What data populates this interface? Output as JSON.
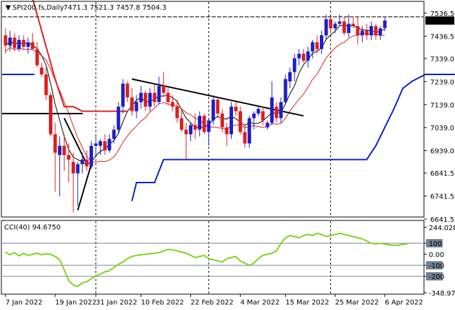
{
  "header": {
    "symbol": "SPI200.fs,Daily",
    "ohlc": "7471.3 7521.3 7457.8 7504.3"
  },
  "colors": {
    "bull": "#1e1ec8",
    "bear": "#dc1e1e",
    "price_ma": "#000000",
    "fast_ma": "#dc1e1e",
    "stop": "#0a1ec8",
    "cci": "#7fd21e",
    "grid": "#708090"
  },
  "chart_data": [
    {
      "type": "candlestick",
      "title": "SPI200.fs,Daily",
      "ylim": [
        6641.5,
        7536.5
      ],
      "y_ticks": [
        "7536.5",
        "7436.5",
        "7339.0",
        "7239.0",
        "7139.0",
        "7039.0",
        "6939.0",
        "6841.5",
        "6741.5",
        "6641.5"
      ],
      "x_ticks": [
        "7 Jan 2022",
        "19 Jan 2022",
        "31 Jan 2022",
        "10 Feb 2022",
        "22 Feb 2022",
        "4 Mar 2022",
        "15 Mar 2022",
        "25 Mar 2022",
        "6 Apr 2022"
      ],
      "last_price": "7504.3",
      "last_price_value": 7504.3,
      "resistance_level": 7520,
      "candles": [
        {
          "o": 7440,
          "h": 7470,
          "l": 7360,
          "c": 7395
        },
        {
          "o": 7395,
          "h": 7460,
          "l": 7370,
          "c": 7430
        },
        {
          "o": 7430,
          "h": 7450,
          "l": 7370,
          "c": 7385
        },
        {
          "o": 7380,
          "h": 7440,
          "l": 7370,
          "c": 7420
        },
        {
          "o": 7420,
          "h": 7440,
          "l": 7380,
          "c": 7390
        },
        {
          "o": 7390,
          "h": 7430,
          "l": 7360,
          "c": 7410
        },
        {
          "o": 7410,
          "h": 7450,
          "l": 7380,
          "c": 7380
        },
        {
          "o": 7380,
          "h": 7410,
          "l": 7300,
          "c": 7310
        },
        {
          "o": 7300,
          "h": 7320,
          "l": 7260,
          "c": 7270
        },
        {
          "o": 7270,
          "h": 7300,
          "l": 7160,
          "c": 7180
        },
        {
          "o": 7180,
          "h": 7190,
          "l": 7000,
          "c": 7010
        },
        {
          "o": 7010,
          "h": 7060,
          "l": 6760,
          "c": 6930
        },
        {
          "o": 6920,
          "h": 7000,
          "l": 6740,
          "c": 6960
        },
        {
          "o": 6960,
          "h": 7010,
          "l": 6850,
          "c": 6920
        },
        {
          "o": 6920,
          "h": 6970,
          "l": 6800,
          "c": 6900
        },
        {
          "o": 6890,
          "h": 6930,
          "l": 6670,
          "c": 6840
        },
        {
          "o": 6840,
          "h": 6890,
          "l": 6700,
          "c": 6880
        },
        {
          "o": 6880,
          "h": 6930,
          "l": 6840,
          "c": 6900
        },
        {
          "o": 6900,
          "h": 6940,
          "l": 6850,
          "c": 6870
        },
        {
          "o": 6870,
          "h": 6980,
          "l": 6860,
          "c": 6960
        },
        {
          "o": 6960,
          "h": 7000,
          "l": 6920,
          "c": 6970
        },
        {
          "o": 6960,
          "h": 6990,
          "l": 6920,
          "c": 6980
        },
        {
          "o": 6980,
          "h": 7010,
          "l": 6920,
          "c": 6940
        },
        {
          "o": 6940,
          "h": 7010,
          "l": 6930,
          "c": 6990
        },
        {
          "o": 6990,
          "h": 7050,
          "l": 6970,
          "c": 7030
        },
        {
          "o": 7030,
          "h": 7150,
          "l": 7010,
          "c": 7130
        },
        {
          "o": 7130,
          "h": 7250,
          "l": 7100,
          "c": 7230
        },
        {
          "o": 7230,
          "h": 7240,
          "l": 7150,
          "c": 7170
        },
        {
          "o": 7170,
          "h": 7210,
          "l": 7090,
          "c": 7110
        },
        {
          "o": 7110,
          "h": 7180,
          "l": 7080,
          "c": 7150
        },
        {
          "o": 7150,
          "h": 7220,
          "l": 7120,
          "c": 7190
        },
        {
          "o": 7190,
          "h": 7200,
          "l": 7110,
          "c": 7130
        },
        {
          "o": 7130,
          "h": 7210,
          "l": 7110,
          "c": 7190
        },
        {
          "o": 7190,
          "h": 7230,
          "l": 7130,
          "c": 7150
        },
        {
          "o": 7150,
          "h": 7260,
          "l": 7140,
          "c": 7220
        },
        {
          "o": 7220,
          "h": 7280,
          "l": 7180,
          "c": 7190
        },
        {
          "o": 7190,
          "h": 7210,
          "l": 7140,
          "c": 7150
        },
        {
          "o": 7150,
          "h": 7180,
          "l": 7110,
          "c": 7130
        },
        {
          "o": 7130,
          "h": 7160,
          "l": 7060,
          "c": 7080
        },
        {
          "o": 7080,
          "h": 7110,
          "l": 7020,
          "c": 7030
        },
        {
          "o": 7030,
          "h": 7060,
          "l": 6900,
          "c": 7010
        },
        {
          "o": 7010,
          "h": 7060,
          "l": 6980,
          "c": 7050
        },
        {
          "o": 7050,
          "h": 7100,
          "l": 6990,
          "c": 7030
        },
        {
          "o": 7030,
          "h": 7110,
          "l": 7000,
          "c": 7090
        },
        {
          "o": 7090,
          "h": 7100,
          "l": 7010,
          "c": 7020
        },
        {
          "o": 7020,
          "h": 7080,
          "l": 6960,
          "c": 7070
        },
        {
          "o": 7070,
          "h": 7180,
          "l": 7050,
          "c": 7160
        },
        {
          "o": 7160,
          "h": 7170,
          "l": 7080,
          "c": 7100
        },
        {
          "o": 7100,
          "h": 7120,
          "l": 7020,
          "c": 7040
        },
        {
          "o": 7040,
          "h": 7060,
          "l": 6960,
          "c": 7010
        },
        {
          "o": 7010,
          "h": 7150,
          "l": 6990,
          "c": 7130
        },
        {
          "o": 7130,
          "h": 7150,
          "l": 7090,
          "c": 7110
        },
        {
          "o": 7110,
          "h": 7130,
          "l": 7010,
          "c": 7020
        },
        {
          "o": 7020,
          "h": 7050,
          "l": 6950,
          "c": 6970
        },
        {
          "o": 6970,
          "h": 7090,
          "l": 6950,
          "c": 7080
        },
        {
          "o": 7080,
          "h": 7110,
          "l": 7030,
          "c": 7100
        },
        {
          "o": 7100,
          "h": 7130,
          "l": 7090,
          "c": 7120
        },
        {
          "o": 7110,
          "h": 7130,
          "l": 7050,
          "c": 7070
        },
        {
          "o": 7040,
          "h": 7070,
          "l": 7030,
          "c": 7060
        },
        {
          "o": 7060,
          "h": 7240,
          "l": 7050,
          "c": 7170
        },
        {
          "o": 7130,
          "h": 7150,
          "l": 7060,
          "c": 7080
        },
        {
          "o": 7080,
          "h": 7170,
          "l": 7060,
          "c": 7150
        },
        {
          "o": 7150,
          "h": 7270,
          "l": 7140,
          "c": 7250
        },
        {
          "o": 7240,
          "h": 7300,
          "l": 7210,
          "c": 7280
        },
        {
          "o": 7280,
          "h": 7360,
          "l": 7240,
          "c": 7340
        },
        {
          "o": 7340,
          "h": 7380,
          "l": 7310,
          "c": 7360
        },
        {
          "o": 7360,
          "h": 7380,
          "l": 7320,
          "c": 7330
        },
        {
          "o": 7330,
          "h": 7390,
          "l": 7300,
          "c": 7370
        },
        {
          "o": 7370,
          "h": 7420,
          "l": 7340,
          "c": 7410
        },
        {
          "o": 7410,
          "h": 7440,
          "l": 7360,
          "c": 7380
        },
        {
          "o": 7380,
          "h": 7460,
          "l": 7360,
          "c": 7440
        },
        {
          "o": 7440,
          "h": 7530,
          "l": 7420,
          "c": 7510
        },
        {
          "o": 7510,
          "h": 7520,
          "l": 7450,
          "c": 7470
        },
        {
          "o": 7470,
          "h": 7500,
          "l": 7450,
          "c": 7490
        },
        {
          "o": 7490,
          "h": 7530,
          "l": 7480,
          "c": 7500
        },
        {
          "o": 7500,
          "h": 7520,
          "l": 7440,
          "c": 7450
        },
        {
          "o": 7450,
          "h": 7530,
          "l": 7430,
          "c": 7490
        },
        {
          "o": 7490,
          "h": 7520,
          "l": 7470,
          "c": 7480
        },
        {
          "o": 7480,
          "h": 7520,
          "l": 7400,
          "c": 7440
        },
        {
          "o": 7440,
          "h": 7480,
          "l": 7410,
          "c": 7460
        },
        {
          "o": 7460,
          "h": 7490,
          "l": 7420,
          "c": 7440
        },
        {
          "o": 7440,
          "h": 7500,
          "l": 7420,
          "c": 7480
        },
        {
          "o": 7480,
          "h": 7490,
          "l": 7420,
          "c": 7440
        },
        {
          "o": 7440,
          "h": 7480,
          "l": 7420,
          "c": 7470
        },
        {
          "o": 7471.3,
          "h": 7521.3,
          "l": 7457.8,
          "c": 7504.3
        }
      ]
    },
    {
      "type": "line",
      "title": "CCI(40) 94.6750",
      "ylim": [
        -348.978,
        244.0283
      ],
      "y_ticks": [
        "244.0283",
        "100",
        "0.00",
        "-100",
        "-200",
        "-348.978"
      ],
      "levels": [
        100,
        -100,
        -200
      ],
      "values": [
        20,
        -5,
        15,
        -15,
        8,
        -10,
        0,
        10,
        -5,
        5,
        0,
        -20,
        -50,
        -140,
        -240,
        -280,
        -290,
        -260,
        -250,
        -220,
        -200,
        -180,
        -160,
        -150,
        -120,
        -90,
        -70,
        -40,
        -20,
        -10,
        -5,
        0,
        5,
        10,
        15,
        30,
        45,
        40,
        30,
        20,
        10,
        -10,
        -30,
        -20,
        -10,
        -40,
        -50,
        -60,
        -70,
        -40,
        -30,
        -20,
        -60,
        -80,
        -100,
        -80,
        -40,
        -10,
        0,
        10,
        30,
        100,
        150,
        170,
        160,
        150,
        170,
        180,
        170,
        190,
        180,
        160,
        170,
        180,
        190,
        180,
        170,
        160,
        150,
        140,
        120,
        100,
        95,
        100,
        92,
        85,
        80,
        82,
        90,
        94.675
      ]
    }
  ]
}
